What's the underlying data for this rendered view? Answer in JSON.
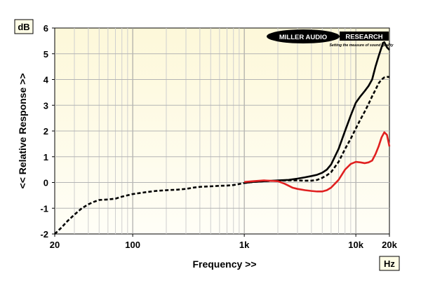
{
  "chart_data": {
    "type": "line",
    "xscale": "log",
    "xlim": [
      20,
      20000
    ],
    "ylim": [
      -2,
      6
    ],
    "xlabel": "Frequency >>",
    "ylabel": "<< Relative Response >>",
    "x_unit": "Hz",
    "y_unit": "dB",
    "grid": true,
    "x_ticks": [
      {
        "value": 20,
        "label": "20"
      },
      {
        "value": 100,
        "label": "100"
      },
      {
        "value": 1000,
        "label": "1k"
      },
      {
        "value": 10000,
        "label": "10k"
      },
      {
        "value": 20000,
        "label": "20k"
      }
    ],
    "y_ticks": [
      {
        "value": 6,
        "label": "6"
      },
      {
        "value": 5,
        "label": "5"
      },
      {
        "value": 4,
        "label": "4"
      },
      {
        "value": 3,
        "label": "3"
      },
      {
        "value": 2,
        "label": "2"
      },
      {
        "value": 1,
        "label": "1"
      },
      {
        "value": 0,
        "label": "0"
      },
      {
        "value": -1,
        "label": "-1"
      },
      {
        "value": -2,
        "label": "-2"
      }
    ],
    "logo": {
      "name": "MILLER AUDIO RESEARCH",
      "tagline": "Setting the measure of sound quality"
    },
    "series": [
      {
        "color": "#000000",
        "style": "dashed",
        "points": [
          [
            20,
            -2.0
          ],
          [
            23,
            -1.75
          ],
          [
            26,
            -1.5
          ],
          [
            30,
            -1.25
          ],
          [
            35,
            -1.0
          ],
          [
            40,
            -0.85
          ],
          [
            45,
            -0.75
          ],
          [
            50,
            -0.68
          ],
          [
            60,
            -0.66
          ],
          [
            70,
            -0.63
          ],
          [
            80,
            -0.55
          ],
          [
            100,
            -0.45
          ],
          [
            130,
            -0.38
          ],
          [
            160,
            -0.33
          ],
          [
            200,
            -0.3
          ],
          [
            250,
            -0.28
          ],
          [
            300,
            -0.25
          ],
          [
            350,
            -0.2
          ],
          [
            400,
            -0.17
          ],
          [
            500,
            -0.15
          ],
          [
            600,
            -0.13
          ],
          [
            700,
            -0.12
          ],
          [
            800,
            -0.1
          ],
          [
            900,
            -0.06
          ],
          [
            1000,
            -0.02
          ],
          [
            1200,
            0.02
          ],
          [
            1500,
            0.05
          ],
          [
            2000,
            0.07
          ],
          [
            2500,
            0.08
          ],
          [
            3000,
            0.08
          ],
          [
            3500,
            0.07
          ],
          [
            4000,
            0.07
          ],
          [
            4500,
            0.1
          ],
          [
            5000,
            0.18
          ],
          [
            5500,
            0.28
          ],
          [
            6000,
            0.4
          ],
          [
            7000,
            0.8
          ],
          [
            8000,
            1.3
          ],
          [
            9000,
            1.7
          ],
          [
            10000,
            2.1
          ],
          [
            11000,
            2.45
          ],
          [
            12000,
            2.75
          ],
          [
            13000,
            3.05
          ],
          [
            14000,
            3.35
          ],
          [
            15000,
            3.6
          ],
          [
            16000,
            3.85
          ],
          [
            17000,
            4.0
          ],
          [
            18000,
            4.08
          ],
          [
            19000,
            4.1
          ],
          [
            20000,
            4.1
          ]
        ]
      },
      {
        "color": "#000000",
        "style": "solid",
        "points": [
          [
            1000,
            -0.02
          ],
          [
            1200,
            0.02
          ],
          [
            1500,
            0.05
          ],
          [
            2000,
            0.08
          ],
          [
            2500,
            0.1
          ],
          [
            3000,
            0.15
          ],
          [
            3500,
            0.2
          ],
          [
            4000,
            0.25
          ],
          [
            4500,
            0.3
          ],
          [
            5000,
            0.38
          ],
          [
            5500,
            0.5
          ],
          [
            6000,
            0.7
          ],
          [
            7000,
            1.3
          ],
          [
            8000,
            2.0
          ],
          [
            9000,
            2.6
          ],
          [
            10000,
            3.1
          ],
          [
            11000,
            3.35
          ],
          [
            12000,
            3.55
          ],
          [
            13000,
            3.75
          ],
          [
            14000,
            4.0
          ],
          [
            15000,
            4.5
          ],
          [
            16000,
            4.9
          ],
          [
            17000,
            5.25
          ],
          [
            17500,
            5.42
          ],
          [
            18000,
            5.45
          ],
          [
            18500,
            5.35
          ],
          [
            19000,
            5.25
          ],
          [
            20000,
            5.15
          ]
        ]
      },
      {
        "color": "#e02020",
        "style": "solid",
        "points": [
          [
            1000,
            0.02
          ],
          [
            1200,
            0.05
          ],
          [
            1500,
            0.08
          ],
          [
            2000,
            0.05
          ],
          [
            2300,
            -0.05
          ],
          [
            2700,
            -0.2
          ],
          [
            3000,
            -0.25
          ],
          [
            3500,
            -0.3
          ],
          [
            4000,
            -0.33
          ],
          [
            4500,
            -0.35
          ],
          [
            5000,
            -0.35
          ],
          [
            5500,
            -0.3
          ],
          [
            6000,
            -0.2
          ],
          [
            7000,
            0.1
          ],
          [
            8000,
            0.5
          ],
          [
            9000,
            0.72
          ],
          [
            10000,
            0.8
          ],
          [
            11000,
            0.78
          ],
          [
            12000,
            0.75
          ],
          [
            13000,
            0.78
          ],
          [
            14000,
            0.85
          ],
          [
            15000,
            1.1
          ],
          [
            16000,
            1.4
          ],
          [
            17000,
            1.75
          ],
          [
            18000,
            1.95
          ],
          [
            19000,
            1.85
          ],
          [
            20000,
            1.4
          ]
        ]
      }
    ]
  }
}
